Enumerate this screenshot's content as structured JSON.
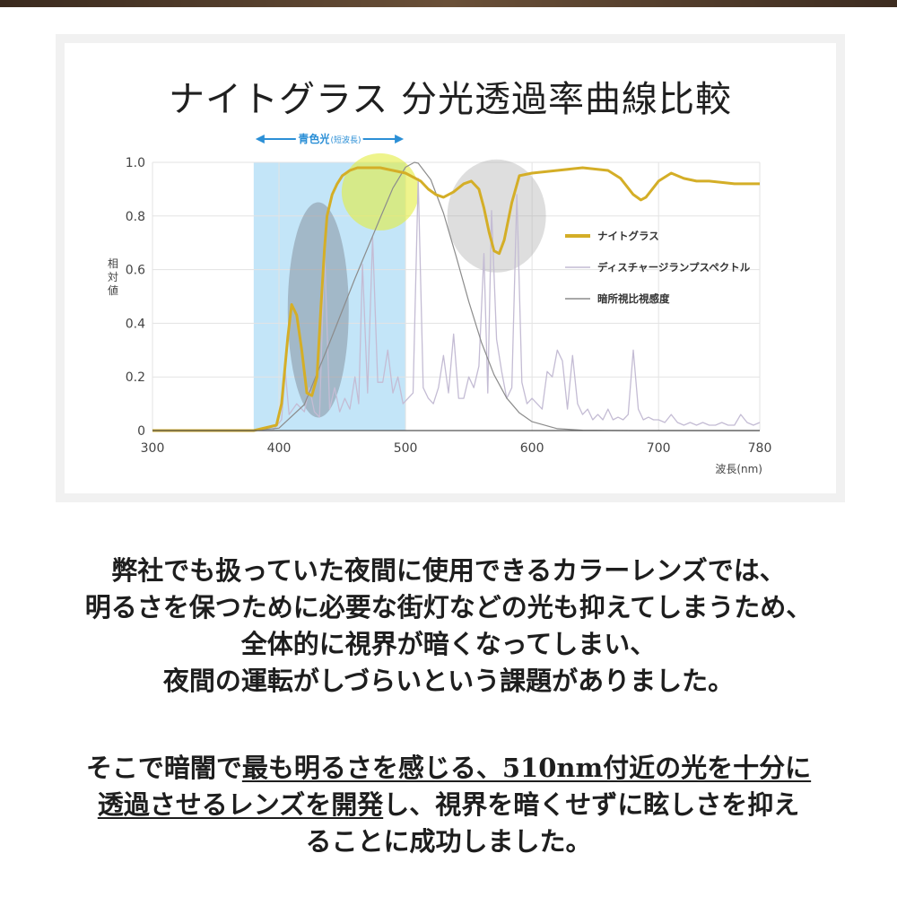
{
  "chart_data": {
    "type": "line",
    "title": "ナイトグラス 分光透過率曲線比較",
    "xlabel": "波長(nm)",
    "ylabel": "相対値",
    "xlim": [
      300,
      780
    ],
    "ylim": [
      0,
      1.0
    ],
    "xticks": [
      "300",
      "400",
      "500",
      "600",
      "700",
      "780"
    ],
    "yticks": [
      "0",
      "0.2",
      "0.4",
      "0.6",
      "0.8",
      "1.0"
    ],
    "grid": true,
    "legend_position": "right",
    "band": {
      "label": "青色光",
      "sublabel": "(短波長)",
      "x_range": [
        380,
        500
      ]
    },
    "colors": {
      "night_glass": "#d4ae27",
      "discharge": "#c4bcd4",
      "scotopic": "#8c8c8c",
      "band": "#b9e1f7"
    },
    "series": [
      {
        "name": "ナイトグラス",
        "x": [
          300,
          380,
          398,
          402,
          407,
          410,
          414,
          418,
          422,
          426,
          430,
          433,
          436,
          438,
          442,
          446,
          450,
          456,
          462,
          470,
          480,
          490,
          500,
          508,
          512,
          518,
          524,
          530,
          538,
          546,
          552,
          558,
          562,
          566,
          570,
          574,
          578,
          584,
          590,
          600,
          620,
          640,
          660,
          670,
          680,
          686,
          690,
          700,
          710,
          720,
          730,
          740,
          760,
          780
        ],
        "y": [
          0.0,
          0.0,
          0.02,
          0.1,
          0.35,
          0.47,
          0.43,
          0.3,
          0.14,
          0.13,
          0.2,
          0.45,
          0.68,
          0.8,
          0.88,
          0.92,
          0.95,
          0.97,
          0.98,
          0.98,
          0.98,
          0.97,
          0.96,
          0.94,
          0.93,
          0.9,
          0.88,
          0.87,
          0.89,
          0.92,
          0.93,
          0.9,
          0.83,
          0.74,
          0.67,
          0.66,
          0.71,
          0.85,
          0.95,
          0.96,
          0.97,
          0.98,
          0.97,
          0.94,
          0.88,
          0.86,
          0.87,
          0.93,
          0.96,
          0.94,
          0.93,
          0.93,
          0.92,
          0.92
        ]
      },
      {
        "name": "ディスチャージランプスペクトル",
        "x": [
          300,
          395,
          402,
          405,
          408,
          414,
          420,
          424,
          428,
          432,
          436,
          440,
          444,
          448,
          452,
          456,
          460,
          463,
          466,
          470,
          474,
          478,
          482,
          486,
          490,
          494,
          498,
          502,
          506,
          510,
          514,
          518,
          522,
          526,
          530,
          534,
          538,
          542,
          546,
          550,
          554,
          558,
          562,
          565,
          568,
          572,
          576,
          580,
          584,
          588,
          592,
          596,
          600,
          604,
          608,
          612,
          616,
          620,
          624,
          628,
          632,
          636,
          640,
          644,
          648,
          652,
          656,
          660,
          664,
          668,
          672,
          676,
          680,
          684,
          688,
          692,
          696,
          700,
          705,
          710,
          715,
          720,
          725,
          730,
          735,
          740,
          745,
          750,
          755,
          760,
          765,
          770,
          775,
          780
        ],
        "y": [
          0.0,
          0.0,
          0.04,
          0.22,
          0.06,
          0.1,
          0.07,
          0.16,
          0.07,
          0.05,
          0.68,
          0.08,
          0.16,
          0.07,
          0.12,
          0.08,
          0.2,
          0.1,
          0.62,
          0.14,
          0.72,
          0.18,
          0.18,
          0.3,
          0.14,
          0.2,
          0.1,
          0.12,
          0.14,
          0.94,
          0.16,
          0.12,
          0.1,
          0.16,
          0.28,
          0.14,
          0.36,
          0.12,
          0.12,
          0.2,
          0.16,
          0.24,
          0.66,
          0.14,
          0.82,
          0.34,
          0.22,
          0.12,
          0.16,
          0.88,
          0.18,
          0.1,
          0.12,
          0.1,
          0.08,
          0.22,
          0.2,
          0.3,
          0.26,
          0.08,
          0.28,
          0.1,
          0.06,
          0.08,
          0.04,
          0.06,
          0.04,
          0.08,
          0.04,
          0.05,
          0.04,
          0.06,
          0.3,
          0.08,
          0.04,
          0.05,
          0.04,
          0.04,
          0.03,
          0.06,
          0.03,
          0.02,
          0.03,
          0.02,
          0.03,
          0.02,
          0.02,
          0.03,
          0.02,
          0.02,
          0.06,
          0.03,
          0.02,
          0.03
        ]
      },
      {
        "name": "暗所視比視感度",
        "x": [
          380,
          400,
          420,
          440,
          460,
          480,
          490,
          500,
          507,
          510,
          520,
          530,
          540,
          550,
          560,
          570,
          580,
          590,
          600,
          620,
          640,
          660,
          680,
          700,
          720,
          750,
          780
        ],
        "y": [
          0.0006,
          0.009,
          0.097,
          0.328,
          0.567,
          0.793,
          0.904,
          0.982,
          1.0,
          0.997,
          0.935,
          0.811,
          0.65,
          0.481,
          0.329,
          0.208,
          0.121,
          0.066,
          0.033,
          0.007,
          0.0015,
          0.0003,
          0.0001,
          0.0,
          0.0,
          0.0,
          0.0
        ]
      }
    ]
  },
  "paragraph1": {
    "lines": [
      "弊社でも扱っていた夜間に使用できるカラーレンズでは、",
      "明るさを保つために必要な街灯などの光も抑えてしまうため、",
      "全体的に視界が暗くなってしまい、",
      "夜間の運転がしづらいという課題がありました。"
    ]
  },
  "paragraph2": {
    "line1_a": "そこで暗闇で",
    "line1_u": "最も明るさを感じる、510nm付近の光を十分に",
    "line2_u": "透過させるレンズを開発",
    "line2_b": "し、視界を暗くせずに眩しさを抑え",
    "line3": "ることに成功しました。"
  }
}
